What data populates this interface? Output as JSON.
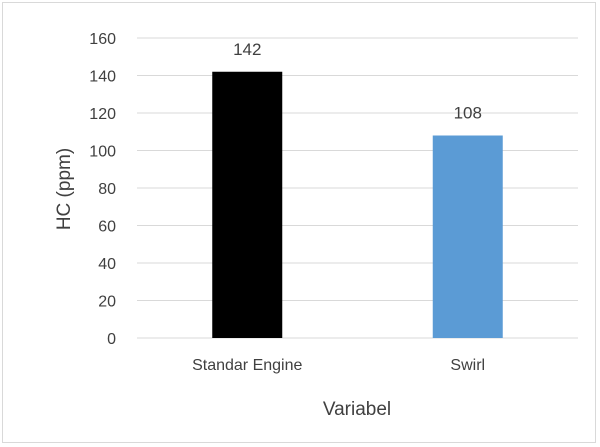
{
  "chart_data": {
    "type": "bar",
    "categories": [
      "Standar Engine",
      "Swirl"
    ],
    "values": [
      142,
      108
    ],
    "colors": [
      "#000000",
      "#5b9bd5"
    ],
    "data_labels": [
      "142",
      "108"
    ],
    "xlabel": "Variabel",
    "ylabel": "HC (ppm)",
    "ylim": [
      0,
      160
    ],
    "yticks": [
      0,
      20,
      40,
      60,
      80,
      100,
      120,
      140,
      160
    ],
    "grid": true,
    "legend": "none"
  }
}
